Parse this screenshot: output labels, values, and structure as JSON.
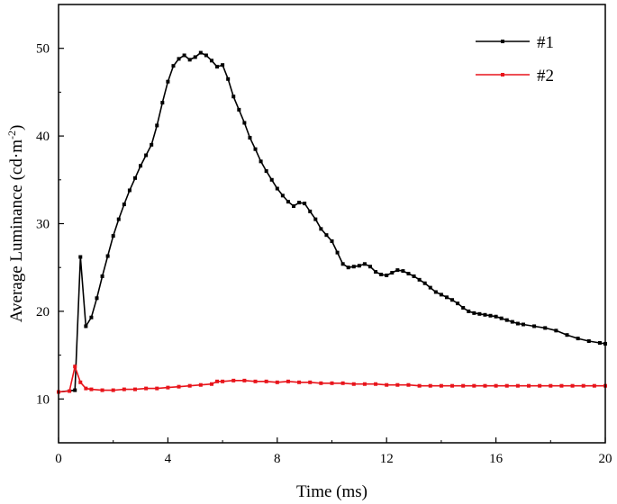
{
  "chart_data": {
    "type": "line",
    "xlabel": "Time (ms)",
    "ylabel": "Average Luminance (cd·m",
    "ylabel_superscript": "-2",
    "ylabel_close": ")",
    "xlim": [
      0,
      20
    ],
    "ylim": [
      5,
      55
    ],
    "xticks": [
      0,
      4,
      8,
      12,
      16,
      20
    ],
    "yticks": [
      10,
      20,
      30,
      40,
      50
    ],
    "grid": false,
    "legend_position": "top-right",
    "series": [
      {
        "name": "#1",
        "color": "#000000",
        "points": [
          [
            0.0,
            10.8
          ],
          [
            0.6,
            11.0
          ],
          [
            0.8,
            26.2
          ],
          [
            1.0,
            18.3
          ],
          [
            1.2,
            19.3
          ],
          [
            1.4,
            21.5
          ],
          [
            1.6,
            24.0
          ],
          [
            1.8,
            26.3
          ],
          [
            2.0,
            28.6
          ],
          [
            2.2,
            30.5
          ],
          [
            2.4,
            32.2
          ],
          [
            2.6,
            33.8
          ],
          [
            2.8,
            35.2
          ],
          [
            3.0,
            36.6
          ],
          [
            3.2,
            37.8
          ],
          [
            3.4,
            39.0
          ],
          [
            3.6,
            41.2
          ],
          [
            3.8,
            43.8
          ],
          [
            4.0,
            46.2
          ],
          [
            4.2,
            48.0
          ],
          [
            4.4,
            48.8
          ],
          [
            4.6,
            49.2
          ],
          [
            4.8,
            48.7
          ],
          [
            5.0,
            49.0
          ],
          [
            5.2,
            49.5
          ],
          [
            5.4,
            49.2
          ],
          [
            5.6,
            48.6
          ],
          [
            5.8,
            47.9
          ],
          [
            6.0,
            48.1
          ],
          [
            6.2,
            46.5
          ],
          [
            6.4,
            44.5
          ],
          [
            6.6,
            43.0
          ],
          [
            6.8,
            41.5
          ],
          [
            7.0,
            39.8
          ],
          [
            7.2,
            38.5
          ],
          [
            7.4,
            37.1
          ],
          [
            7.6,
            36.0
          ],
          [
            7.8,
            35.0
          ],
          [
            8.0,
            34.0
          ],
          [
            8.2,
            33.2
          ],
          [
            8.4,
            32.5
          ],
          [
            8.6,
            32.0
          ],
          [
            8.8,
            32.4
          ],
          [
            9.0,
            32.3
          ],
          [
            9.2,
            31.4
          ],
          [
            9.4,
            30.5
          ],
          [
            9.6,
            29.4
          ],
          [
            9.8,
            28.7
          ],
          [
            10.0,
            28.0
          ],
          [
            10.2,
            26.7
          ],
          [
            10.4,
            25.4
          ],
          [
            10.6,
            25.0
          ],
          [
            10.8,
            25.1
          ],
          [
            11.0,
            25.2
          ],
          [
            11.2,
            25.4
          ],
          [
            11.4,
            25.1
          ],
          [
            11.6,
            24.5
          ],
          [
            11.8,
            24.2
          ],
          [
            12.0,
            24.1
          ],
          [
            12.2,
            24.4
          ],
          [
            12.4,
            24.7
          ],
          [
            12.6,
            24.6
          ],
          [
            12.8,
            24.3
          ],
          [
            13.0,
            24.0
          ],
          [
            13.2,
            23.6
          ],
          [
            13.4,
            23.2
          ],
          [
            13.6,
            22.7
          ],
          [
            13.8,
            22.2
          ],
          [
            14.0,
            21.9
          ],
          [
            14.2,
            21.6
          ],
          [
            14.4,
            21.3
          ],
          [
            14.6,
            20.9
          ],
          [
            14.8,
            20.4
          ],
          [
            15.0,
            20.0
          ],
          [
            15.2,
            19.8
          ],
          [
            15.4,
            19.7
          ],
          [
            15.6,
            19.6
          ],
          [
            15.8,
            19.5
          ],
          [
            16.0,
            19.4
          ],
          [
            16.2,
            19.2
          ],
          [
            16.4,
            19.0
          ],
          [
            16.6,
            18.8
          ],
          [
            16.8,
            18.6
          ],
          [
            17.0,
            18.5
          ],
          [
            17.4,
            18.3
          ],
          [
            17.8,
            18.1
          ],
          [
            18.2,
            17.8
          ],
          [
            18.6,
            17.3
          ],
          [
            19.0,
            16.9
          ],
          [
            19.4,
            16.6
          ],
          [
            19.8,
            16.4
          ],
          [
            20.0,
            16.3
          ]
        ]
      },
      {
        "name": "#2",
        "color": "#e8141b",
        "points": [
          [
            0.0,
            10.8
          ],
          [
            0.4,
            10.9
          ],
          [
            0.6,
            13.7
          ],
          [
            0.8,
            11.9
          ],
          [
            1.0,
            11.2
          ],
          [
            1.2,
            11.1
          ],
          [
            1.6,
            11.0
          ],
          [
            2.0,
            11.0
          ],
          [
            2.4,
            11.1
          ],
          [
            2.8,
            11.1
          ],
          [
            3.2,
            11.2
          ],
          [
            3.6,
            11.2
          ],
          [
            4.0,
            11.3
          ],
          [
            4.4,
            11.4
          ],
          [
            4.8,
            11.5
          ],
          [
            5.2,
            11.6
          ],
          [
            5.6,
            11.7
          ],
          [
            5.8,
            12.0
          ],
          [
            6.0,
            12.0
          ],
          [
            6.4,
            12.1
          ],
          [
            6.8,
            12.1
          ],
          [
            7.2,
            12.0
          ],
          [
            7.6,
            12.0
          ],
          [
            8.0,
            11.9
          ],
          [
            8.4,
            12.0
          ],
          [
            8.8,
            11.9
          ],
          [
            9.2,
            11.9
          ],
          [
            9.6,
            11.8
          ],
          [
            10.0,
            11.8
          ],
          [
            10.4,
            11.8
          ],
          [
            10.8,
            11.7
          ],
          [
            11.2,
            11.7
          ],
          [
            11.6,
            11.7
          ],
          [
            12.0,
            11.6
          ],
          [
            12.4,
            11.6
          ],
          [
            12.8,
            11.6
          ],
          [
            13.2,
            11.5
          ],
          [
            13.6,
            11.5
          ],
          [
            14.0,
            11.5
          ],
          [
            14.4,
            11.5
          ],
          [
            14.8,
            11.5
          ],
          [
            15.2,
            11.5
          ],
          [
            15.6,
            11.5
          ],
          [
            16.0,
            11.5
          ],
          [
            16.4,
            11.5
          ],
          [
            16.8,
            11.5
          ],
          [
            17.2,
            11.5
          ],
          [
            17.6,
            11.5
          ],
          [
            18.0,
            11.5
          ],
          [
            18.4,
            11.5
          ],
          [
            18.8,
            11.5
          ],
          [
            19.2,
            11.5
          ],
          [
            19.6,
            11.5
          ],
          [
            20.0,
            11.5
          ]
        ]
      }
    ]
  }
}
